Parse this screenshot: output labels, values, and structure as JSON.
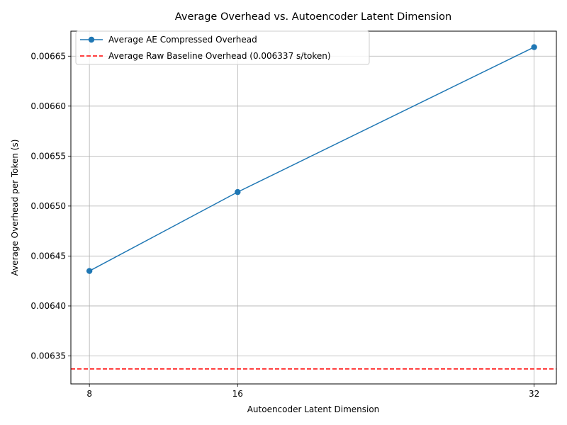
{
  "chart_data": {
    "type": "line",
    "title": "Average Overhead vs. Autoencoder Latent Dimension",
    "xlabel": "Autoencoder Latent Dimension",
    "ylabel": "Average Overhead per Token (s)",
    "x": [
      8,
      16,
      32
    ],
    "x_tick_labels": [
      "8",
      "16",
      "32"
    ],
    "xlim": [
      7.0,
      33.2
    ],
    "ylim": [
      0.006322,
      0.006675
    ],
    "y_ticks": [
      0.00635,
      0.0064,
      0.00645,
      0.0065,
      0.00655,
      0.0066,
      0.00665
    ],
    "y_tick_labels": [
      "0.00635",
      "0.00640",
      "0.00645",
      "0.00650",
      "0.00655",
      "0.00660",
      "0.00665"
    ],
    "grid": true,
    "legend_position": "top-left",
    "series": [
      {
        "name": "Average AE Compressed Overhead",
        "values": [
          0.006435,
          0.006514,
          0.006659
        ],
        "color": "#1f77b4",
        "marker": "circle",
        "style": "solid"
      }
    ],
    "baseline": {
      "name": "Average Raw Baseline Overhead (0.006337 s/token)",
      "value": 0.006337,
      "color": "#ff0000",
      "style": "dashed"
    }
  }
}
